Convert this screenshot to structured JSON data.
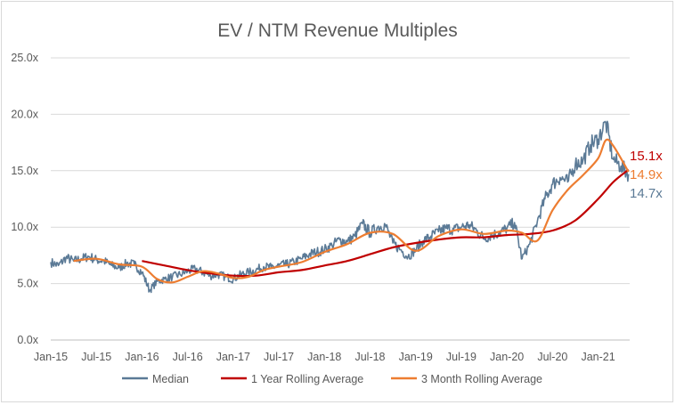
{
  "chart_data": {
    "type": "line",
    "title": "EV / NTM Revenue Multiples",
    "xlabel": "",
    "ylabel": "",
    "ylim": [
      0,
      25
    ],
    "y_ticks": [
      "0.0x",
      "5.0x",
      "10.0x",
      "15.0x",
      "20.0x",
      "25.0x"
    ],
    "x_ticks": [
      "Jan-15",
      "Jul-15",
      "Jan-16",
      "Jul-16",
      "Jan-17",
      "Jul-17",
      "Jan-18",
      "Jul-18",
      "Jan-19",
      "Jul-19",
      "Jan-20",
      "Jul-20",
      "Jan-21"
    ],
    "x_range": [
      "2015-01",
      "2021-05"
    ],
    "grid": "horizontal",
    "legend_position": "bottom",
    "colors": {
      "median": "#5b7a96",
      "rolling_1y": "#c00000",
      "rolling_3m": "#ed7d31"
    },
    "end_labels": {
      "rolling_1y": "15.1x",
      "rolling_3m": "14.9x",
      "median": "14.7x"
    },
    "series": [
      {
        "name": "Median",
        "key": "median",
        "points": [
          [
            "2015-01",
            6.9
          ],
          [
            "2015-02",
            6.6
          ],
          [
            "2015-03",
            7.3
          ],
          [
            "2015-04",
            7.0
          ],
          [
            "2015-05",
            7.2
          ],
          [
            "2015-06",
            7.4
          ],
          [
            "2015-07",
            7.1
          ],
          [
            "2015-08",
            7.0
          ],
          [
            "2015-09",
            6.6
          ],
          [
            "2015-10",
            6.4
          ],
          [
            "2015-11",
            6.8
          ],
          [
            "2015-12",
            6.7
          ],
          [
            "2016-01",
            6.0
          ],
          [
            "2016-02",
            4.4
          ],
          [
            "2016-03",
            5.2
          ],
          [
            "2016-04",
            5.4
          ],
          [
            "2016-05",
            5.6
          ],
          [
            "2016-06",
            5.8
          ],
          [
            "2016-07",
            6.1
          ],
          [
            "2016-08",
            6.3
          ],
          [
            "2016-09",
            6.0
          ],
          [
            "2016-10",
            5.7
          ],
          [
            "2016-11",
            5.8
          ],
          [
            "2016-12",
            5.6
          ],
          [
            "2017-01",
            5.4
          ],
          [
            "2017-02",
            5.8
          ],
          [
            "2017-03",
            6.0
          ],
          [
            "2017-04",
            6.2
          ],
          [
            "2017-05",
            6.5
          ],
          [
            "2017-06",
            6.4
          ],
          [
            "2017-07",
            6.6
          ],
          [
            "2017-08",
            6.7
          ],
          [
            "2017-09",
            6.9
          ],
          [
            "2017-10",
            7.2
          ],
          [
            "2017-11",
            7.6
          ],
          [
            "2017-12",
            7.8
          ],
          [
            "2018-01",
            8.0
          ],
          [
            "2018-02",
            8.4
          ],
          [
            "2018-03",
            8.9
          ],
          [
            "2018-04",
            8.7
          ],
          [
            "2018-05",
            9.2
          ],
          [
            "2018-06",
            10.3
          ],
          [
            "2018-07",
            9.5
          ],
          [
            "2018-08",
            10.0
          ],
          [
            "2018-09",
            10.2
          ],
          [
            "2018-10",
            8.6
          ],
          [
            "2018-11",
            8.0
          ],
          [
            "2018-12",
            7.4
          ],
          [
            "2019-01",
            8.0
          ],
          [
            "2019-02",
            8.8
          ],
          [
            "2019-03",
            9.2
          ],
          [
            "2019-04",
            9.6
          ],
          [
            "2019-05",
            9.9
          ],
          [
            "2019-06",
            9.8
          ],
          [
            "2019-07",
            10.0
          ],
          [
            "2019-08",
            10.2
          ],
          [
            "2019-09",
            9.7
          ],
          [
            "2019-10",
            9.0
          ],
          [
            "2019-11",
            9.3
          ],
          [
            "2019-12",
            9.5
          ],
          [
            "2020-01",
            9.9
          ],
          [
            "2020-02",
            10.4
          ],
          [
            "2020-03",
            7.2
          ],
          [
            "2020-04",
            8.5
          ],
          [
            "2020-05",
            10.5
          ],
          [
            "2020-06",
            12.5
          ],
          [
            "2020-07",
            13.8
          ],
          [
            "2020-08",
            14.4
          ],
          [
            "2020-09",
            14.0
          ],
          [
            "2020-10",
            15.6
          ],
          [
            "2020-11",
            15.9
          ],
          [
            "2020-12",
            17.3
          ],
          [
            "2021-01",
            17.8
          ],
          [
            "2021-02",
            19.3
          ],
          [
            "2021-03",
            16.0
          ],
          [
            "2021-04",
            15.4
          ],
          [
            "2021-05",
            14.7
          ]
        ]
      },
      {
        "name": "1 Year Rolling Average",
        "key": "rolling_1y",
        "points": [
          [
            "2016-01",
            7.0
          ],
          [
            "2016-04",
            6.6
          ],
          [
            "2016-07",
            6.2
          ],
          [
            "2016-10",
            5.9
          ],
          [
            "2017-01",
            5.7
          ],
          [
            "2017-04",
            5.7
          ],
          [
            "2017-07",
            6.0
          ],
          [
            "2017-10",
            6.2
          ],
          [
            "2018-01",
            6.6
          ],
          [
            "2018-04",
            7.0
          ],
          [
            "2018-07",
            7.6
          ],
          [
            "2018-10",
            8.2
          ],
          [
            "2019-01",
            8.6
          ],
          [
            "2019-04",
            8.9
          ],
          [
            "2019-07",
            9.1
          ],
          [
            "2019-10",
            9.1
          ],
          [
            "2020-01",
            9.3
          ],
          [
            "2020-04",
            9.4
          ],
          [
            "2020-07",
            9.7
          ],
          [
            "2020-10",
            10.6
          ],
          [
            "2021-01",
            12.5
          ],
          [
            "2021-03",
            14.0
          ],
          [
            "2021-05",
            15.1
          ]
        ]
      },
      {
        "name": "3 Month Rolling Average",
        "key": "rolling_3m",
        "points": [
          [
            "2015-04",
            7.0
          ],
          [
            "2015-07",
            7.2
          ],
          [
            "2015-10",
            6.7
          ],
          [
            "2016-01",
            6.5
          ],
          [
            "2016-03",
            5.4
          ],
          [
            "2016-05",
            5.1
          ],
          [
            "2016-07",
            5.6
          ],
          [
            "2016-09",
            6.1
          ],
          [
            "2016-11",
            5.9
          ],
          [
            "2017-01",
            5.5
          ],
          [
            "2017-03",
            5.6
          ],
          [
            "2017-05",
            6.2
          ],
          [
            "2017-07",
            6.5
          ],
          [
            "2017-10",
            6.9
          ],
          [
            "2018-01",
            7.8
          ],
          [
            "2018-04",
            8.5
          ],
          [
            "2018-07",
            9.5
          ],
          [
            "2018-10",
            9.4
          ],
          [
            "2019-01",
            7.9
          ],
          [
            "2019-04",
            9.2
          ],
          [
            "2019-07",
            9.8
          ],
          [
            "2019-10",
            9.4
          ],
          [
            "2020-01",
            9.7
          ],
          [
            "2020-03",
            9.5
          ],
          [
            "2020-05",
            8.8
          ],
          [
            "2020-07",
            11.5
          ],
          [
            "2020-09",
            13.3
          ],
          [
            "2020-11",
            14.6
          ],
          [
            "2021-01",
            16.1
          ],
          [
            "2021-02",
            17.7
          ],
          [
            "2021-03",
            17.2
          ],
          [
            "2021-05",
            14.9
          ]
        ]
      }
    ]
  }
}
